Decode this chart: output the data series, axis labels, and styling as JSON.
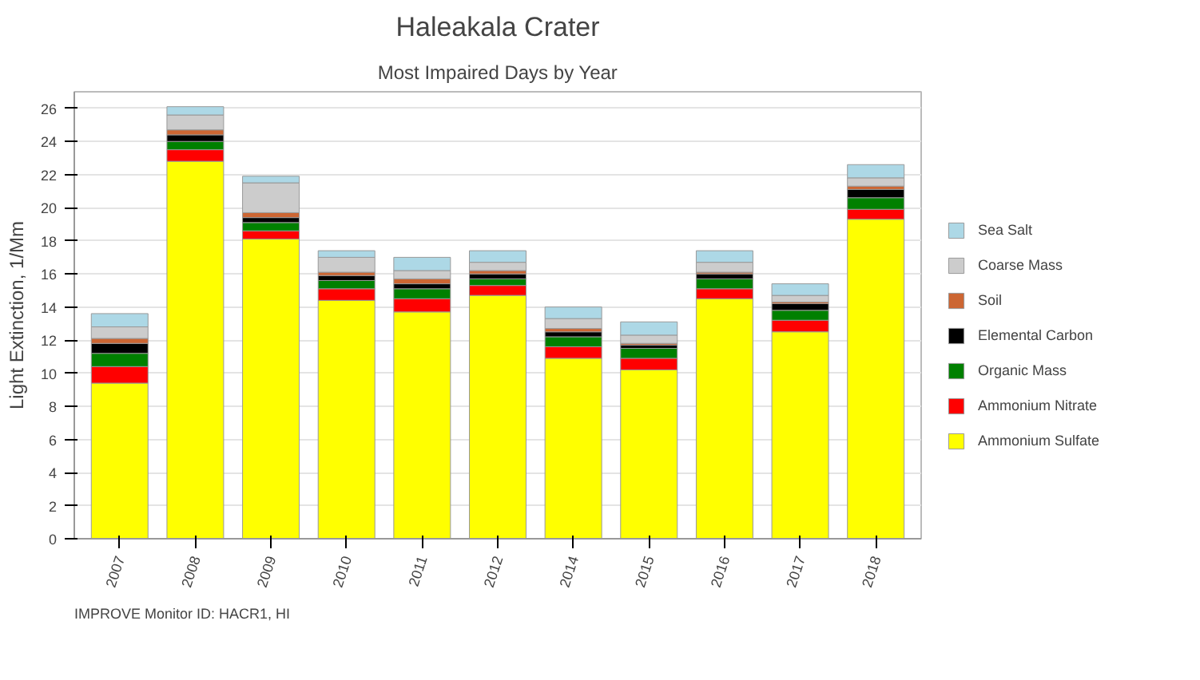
{
  "chart_data": {
    "type": "bar",
    "stacked": true,
    "title": "Haleakala Crater",
    "subtitle": "Most Impaired Days by Year",
    "ylabel": "Light Extinction, 1/Mm",
    "categories": [
      "2007",
      "2008",
      "2009",
      "2010",
      "2011",
      "2012",
      "2014",
      "2015",
      "2016",
      "2017",
      "2018"
    ],
    "series": [
      {
        "name": "Ammonium Sulfate",
        "color": "#ffff00",
        "values": [
          9.4,
          22.8,
          18.1,
          14.4,
          13.7,
          14.7,
          10.9,
          10.2,
          14.5,
          12.5,
          19.3
        ]
      },
      {
        "name": "Ammonium Nitrate",
        "color": "#ff0000",
        "values": [
          1.0,
          0.7,
          0.5,
          0.7,
          0.8,
          0.6,
          0.7,
          0.7,
          0.6,
          0.7,
          0.6
        ]
      },
      {
        "name": "Organic Mass",
        "color": "#008000",
        "values": [
          0.8,
          0.5,
          0.5,
          0.5,
          0.6,
          0.4,
          0.6,
          0.6,
          0.6,
          0.6,
          0.7
        ]
      },
      {
        "name": "Elemental Carbon",
        "color": "#000000",
        "values": [
          0.6,
          0.4,
          0.3,
          0.3,
          0.3,
          0.3,
          0.3,
          0.2,
          0.3,
          0.4,
          0.5
        ]
      },
      {
        "name": "Soil",
        "color": "#cc6633",
        "values": [
          0.3,
          0.3,
          0.3,
          0.2,
          0.3,
          0.2,
          0.2,
          0.1,
          0.1,
          0.1,
          0.2
        ]
      },
      {
        "name": "Coarse Mass",
        "color": "#cccccc",
        "values": [
          0.7,
          0.9,
          1.8,
          0.9,
          0.5,
          0.5,
          0.6,
          0.5,
          0.6,
          0.4,
          0.5
        ]
      },
      {
        "name": "Sea Salt",
        "color": "#add8e6",
        "values": [
          0.8,
          0.5,
          0.4,
          0.4,
          0.8,
          0.7,
          0.7,
          0.8,
          0.7,
          0.7,
          0.8
        ]
      }
    ],
    "ylim": [
      0,
      27
    ],
    "yticks": [
      0,
      2,
      4,
      6,
      8,
      10,
      12,
      14,
      16,
      18,
      20,
      22,
      24,
      26
    ],
    "grid": "y",
    "legend": "right",
    "annotations": [
      "IMPROVE Monitor ID: HACR1, HI"
    ]
  }
}
